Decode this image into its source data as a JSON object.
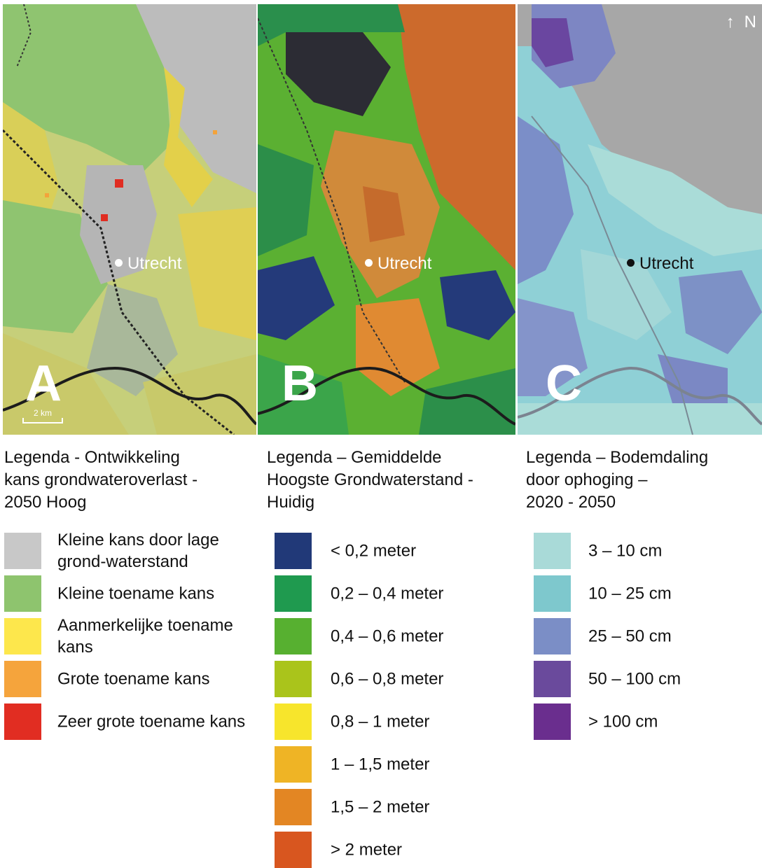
{
  "north_label": "N",
  "scale_label": "2 km",
  "panels": [
    {
      "letter": "A",
      "city": "Utrecht"
    },
    {
      "letter": "B",
      "city": "Utrecht"
    },
    {
      "letter": "C",
      "city": "Utrecht"
    }
  ],
  "legend_a": {
    "title_lines": [
      "Legenda - Ontwikkeling",
      "kans grondwateroverlast -",
      "2050 Hoog"
    ],
    "items": [
      {
        "label_lines": [
          "Kleine kans door lage",
          "grond-waterstand"
        ],
        "color": "#c8c8c8"
      },
      {
        "label_lines": [
          "Kleine toename kans"
        ],
        "color": "#8ec46e"
      },
      {
        "label_lines": [
          "Aanmerkelijke toename",
          "kans"
        ],
        "color": "#fde74c"
      },
      {
        "label_lines": [
          "Grote toename kans"
        ],
        "color": "#f5a43c"
      },
      {
        "label_lines": [
          "Zeer grote toename kans"
        ],
        "color": "#e12d22"
      }
    ]
  },
  "legend_b": {
    "title_lines": [
      "Legenda – Gemiddelde",
      "Hoogste Grondwaterstand -",
      "Huidig"
    ],
    "items": [
      {
        "label": "< 0,2 meter",
        "color": "#213978"
      },
      {
        "label": "0,2 – 0,4 meter",
        "color": "#1f9a4f"
      },
      {
        "label": "0,4 – 0,6 meter",
        "color": "#57b030"
      },
      {
        "label": "0,6 – 0,8 meter",
        "color": "#aac41b"
      },
      {
        "label": "0,8 – 1 meter",
        "color": "#f7e52c"
      },
      {
        "label": "1 – 1,5 meter",
        "color": "#efb425"
      },
      {
        "label": "1,5 – 2 meter",
        "color": "#e38623"
      },
      {
        "label": "> 2 meter",
        "color": "#d8561f"
      }
    ]
  },
  "legend_c": {
    "title_lines": [
      "Legenda – Bodemdaling",
      "door ophoging –",
      "2020 - 2050"
    ],
    "items": [
      {
        "label": "3 – 10 cm",
        "color": "#a9dad8"
      },
      {
        "label": "10 – 25 cm",
        "color": "#7ec8cd"
      },
      {
        "label": "25 – 50 cm",
        "color": "#7b8ec6"
      },
      {
        "label": "50 – 100 cm",
        "color": "#6a4a9c"
      },
      {
        "label": "> 100 cm",
        "color": "#6a2e8e"
      }
    ]
  }
}
